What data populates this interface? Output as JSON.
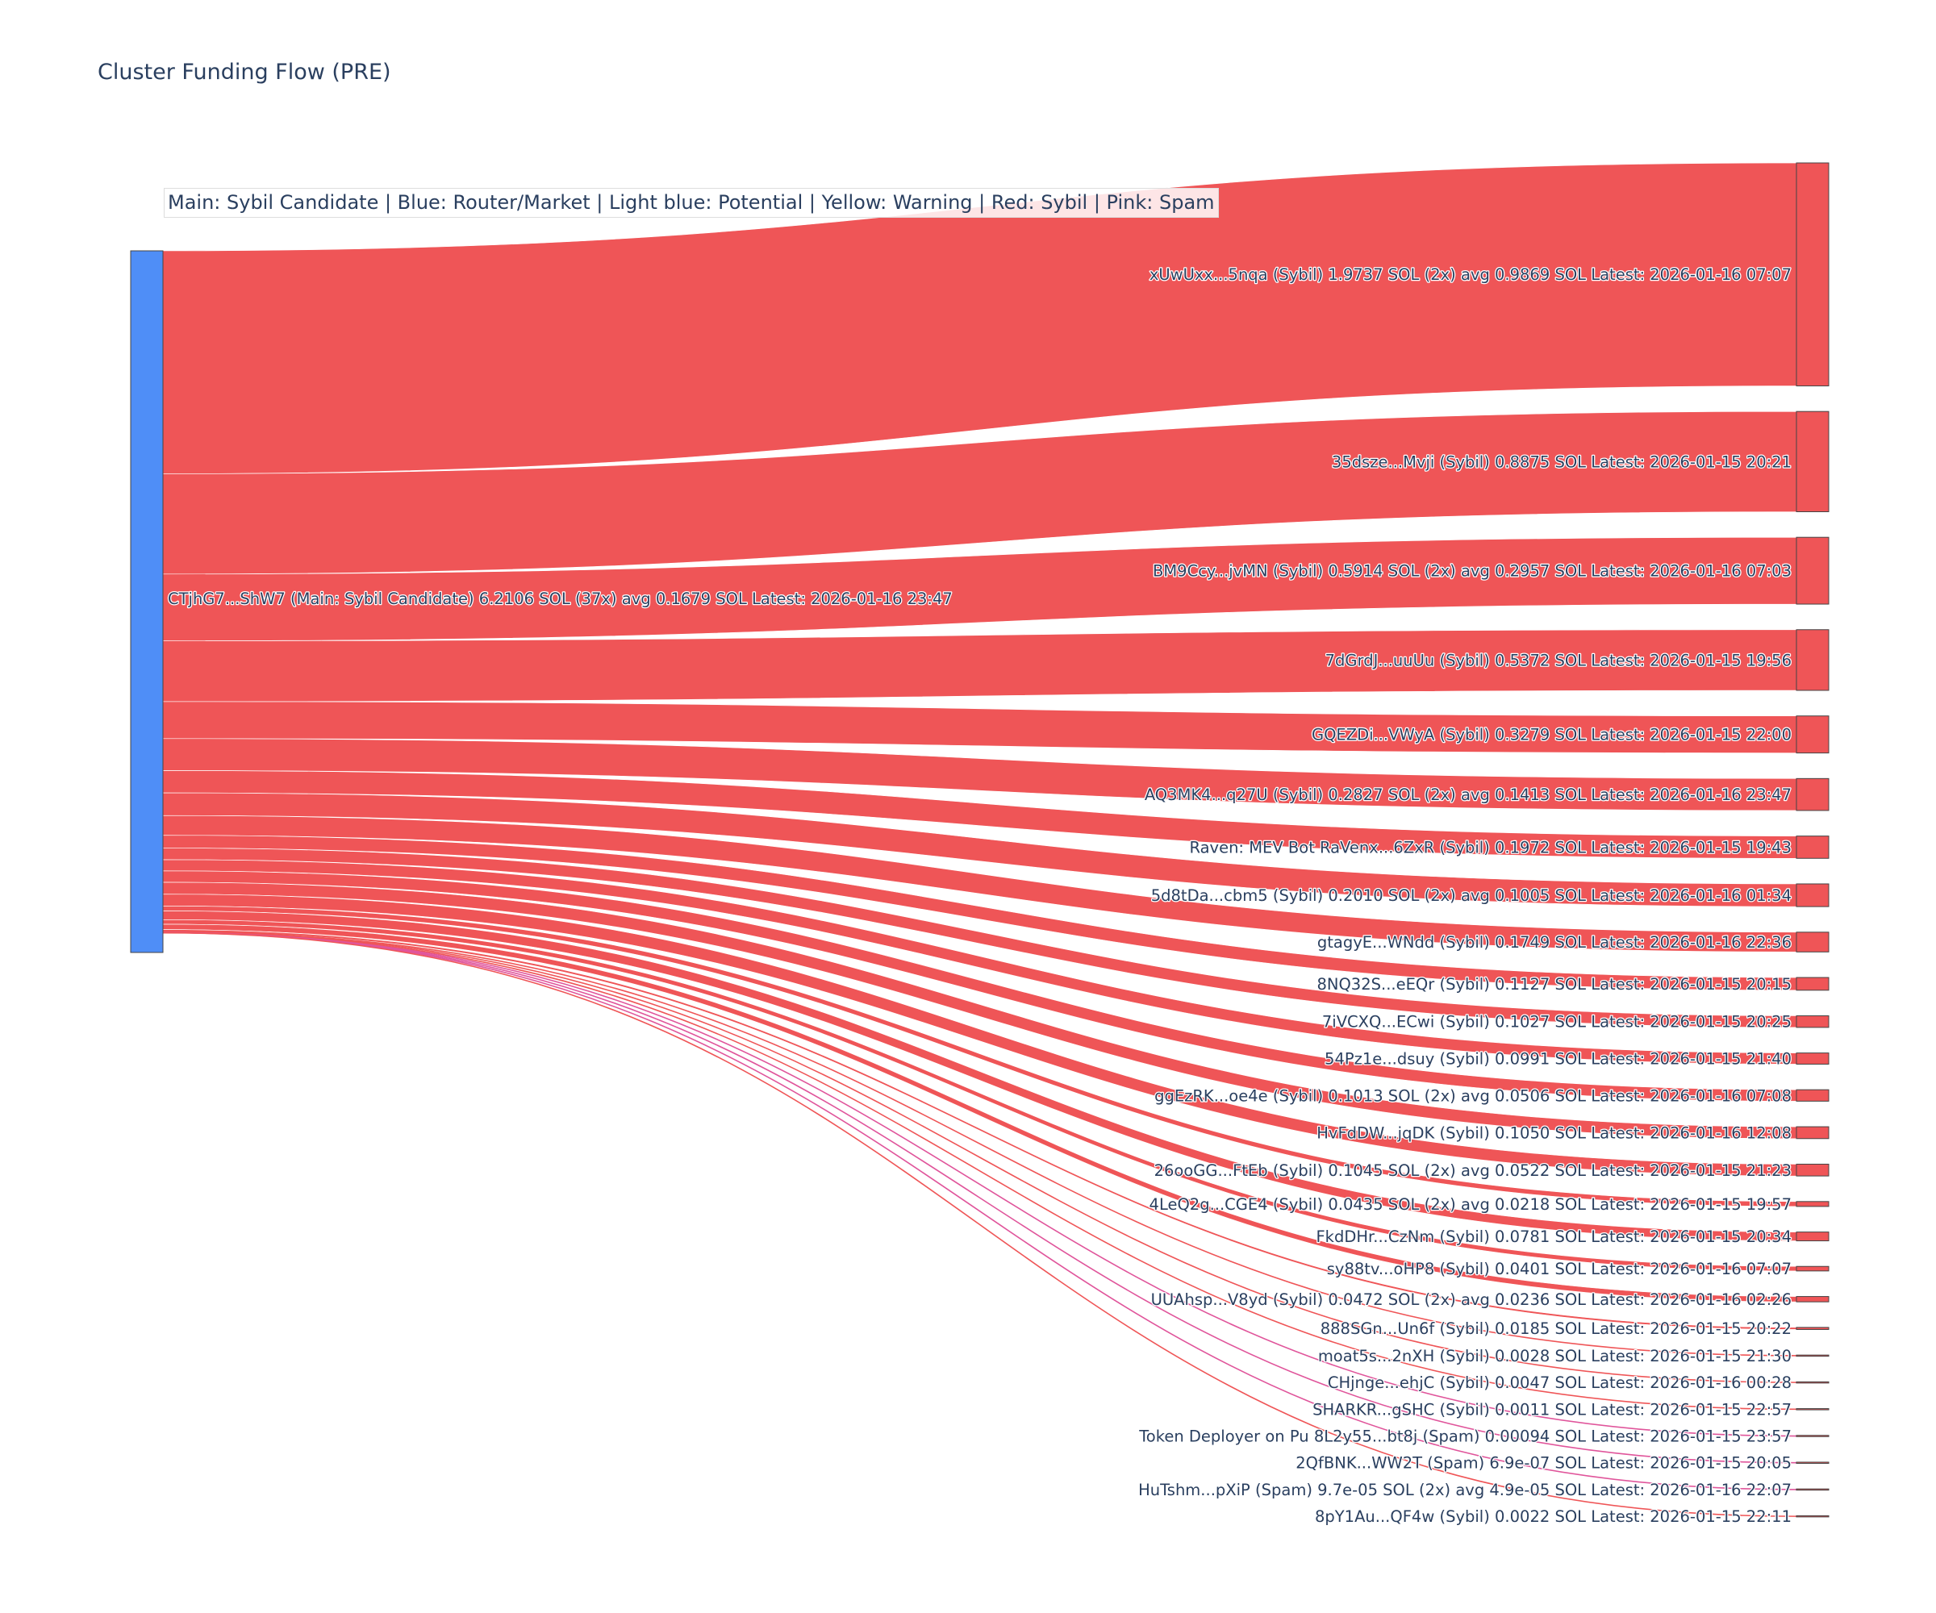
{
  "chart_data": {
    "type": "sankey",
    "title": "Cluster Funding Flow (PRE)",
    "legend_text": "Main: Sybil Candidate  |  Blue: Router/Market | Light blue: Potential | Yellow: Warning | Red: Sybil | Pink: Spam",
    "colors": {
      "main_node": "#4f8ef7",
      "sybil": "#ef5557",
      "sybil_link": "#ef5557",
      "spam_link": "#e0559b",
      "node_border": "#444444"
    },
    "source": {
      "label": "CTjhG7...ShW7 (Main: Sybil Candidate) 6.2106 SOL (37x) avg 0.1679 SOL Latest: 2026-01-16 23:47",
      "value": 6.2106
    },
    "targets": [
      {
        "label": "xUwUxx...5nqa (Sybil) 1.9737 SOL (2x) avg 0.9869 SOL Latest: 2026-01-16 07:07",
        "value": 1.9737,
        "category": "Sybil"
      },
      {
        "label": "35dsze...Mvji (Sybil) 0.8875 SOL Latest: 2026-01-15 20:21",
        "value": 0.8875,
        "category": "Sybil"
      },
      {
        "label": "BM9Ccy...jvMN (Sybil) 0.5914 SOL (2x) avg 0.2957 SOL Latest: 2026-01-16 07:03",
        "value": 0.5914,
        "category": "Sybil"
      },
      {
        "label": "7dGrdJ...uuUu (Sybil) 0.5372 SOL Latest: 2026-01-15 19:56",
        "value": 0.5372,
        "category": "Sybil"
      },
      {
        "label": "GQEZDi...VWyA (Sybil) 0.3279 SOL Latest: 2026-01-15 22:00",
        "value": 0.3279,
        "category": "Sybil"
      },
      {
        "label": "AQ3MK4...q27U (Sybil) 0.2827 SOL (2x) avg 0.1413 SOL Latest: 2026-01-16 23:47",
        "value": 0.2827,
        "category": "Sybil"
      },
      {
        "label": "Raven: MEV Bot RaVenx...6ZxR (Sybil) 0.1972 SOL Latest: 2026-01-15 19:43",
        "value": 0.1972,
        "category": "Sybil"
      },
      {
        "label": "5d8tDa...cbm5 (Sybil) 0.2010 SOL (2x) avg 0.1005 SOL Latest: 2026-01-16 01:34",
        "value": 0.201,
        "category": "Sybil"
      },
      {
        "label": "gtagyE...WNdd (Sybil) 0.1749 SOL Latest: 2026-01-16 22:36",
        "value": 0.1749,
        "category": "Sybil"
      },
      {
        "label": "8NQ32S...eEQr (Sybil) 0.1127 SOL Latest: 2026-01-15 20:15",
        "value": 0.1127,
        "category": "Sybil"
      },
      {
        "label": "7iVCXQ...ECwi (Sybil) 0.1027 SOL Latest: 2026-01-15 20:25",
        "value": 0.1027,
        "category": "Sybil"
      },
      {
        "label": "54Pz1e...dsuy (Sybil) 0.0991 SOL Latest: 2026-01-15 21:40",
        "value": 0.0991,
        "category": "Sybil"
      },
      {
        "label": "ggEzRK...oe4e (Sybil) 0.1013 SOL (2x) avg 0.0506 SOL Latest: 2026-01-16 07:08",
        "value": 0.1013,
        "category": "Sybil"
      },
      {
        "label": "HvFdDW...jqDK (Sybil) 0.1050 SOL Latest: 2026-01-16 12:08",
        "value": 0.105,
        "category": "Sybil"
      },
      {
        "label": "26ooGG...FtEb (Sybil) 0.1045 SOL (2x) avg 0.0522 SOL Latest: 2026-01-15 21:23",
        "value": 0.1045,
        "category": "Sybil"
      },
      {
        "label": "4LeQ2g...CGE4 (Sybil) 0.0435 SOL (2x) avg 0.0218 SOL Latest: 2026-01-15 19:57",
        "value": 0.0435,
        "category": "Sybil"
      },
      {
        "label": "FkdDHr...CzNm (Sybil) 0.0781 SOL Latest: 2026-01-15 20:34",
        "value": 0.0781,
        "category": "Sybil"
      },
      {
        "label": "sy88tv...oHP8 (Sybil) 0.0401 SOL Latest: 2026-01-16 07:07",
        "value": 0.0401,
        "category": "Sybil"
      },
      {
        "label": "UUAhsp...V8yd (Sybil) 0.0472 SOL (2x) avg 0.0236 SOL Latest: 2026-01-16 02:26",
        "value": 0.0472,
        "category": "Sybil"
      },
      {
        "label": "888SGn...Un6f (Sybil) 0.0185 SOL Latest: 2026-01-15 20:22",
        "value": 0.0185,
        "category": "Sybil"
      },
      {
        "label": "moat5s...2nXH (Sybil) 0.0028 SOL Latest: 2026-01-15 21:30",
        "value": 0.0028,
        "category": "Sybil"
      },
      {
        "label": "CHjnge...ehjC (Sybil) 0.0047 SOL Latest: 2026-01-16 00:28",
        "value": 0.0047,
        "category": "Sybil"
      },
      {
        "label": "SHARKR...gSHC (Sybil) 0.0011 SOL Latest: 2026-01-15 22:57",
        "value": 0.0011,
        "category": "Sybil"
      },
      {
        "label": "Token Deployer on Pu 8L2y55...bt8j (Spam) 0.00094 SOL Latest: 2026-01-15 23:57",
        "value": 0.00094,
        "category": "Spam"
      },
      {
        "label": "2QfBNK...WW2T (Spam) 6.9e-07 SOL Latest: 2026-01-15 20:05",
        "value": 6.9e-07,
        "category": "Spam"
      },
      {
        "label": "HuTshm...pXiP (Spam) 9.7e-05 SOL (2x) avg 4.9e-05 SOL Latest: 2026-01-16 22:07",
        "value": 9.7e-05,
        "category": "Spam"
      },
      {
        "label": "8pY1Au...QF4w (Sybil) 0.0022 SOL Latest: 2026-01-15 22:11",
        "value": 0.0022,
        "category": "Sybil"
      }
    ]
  }
}
